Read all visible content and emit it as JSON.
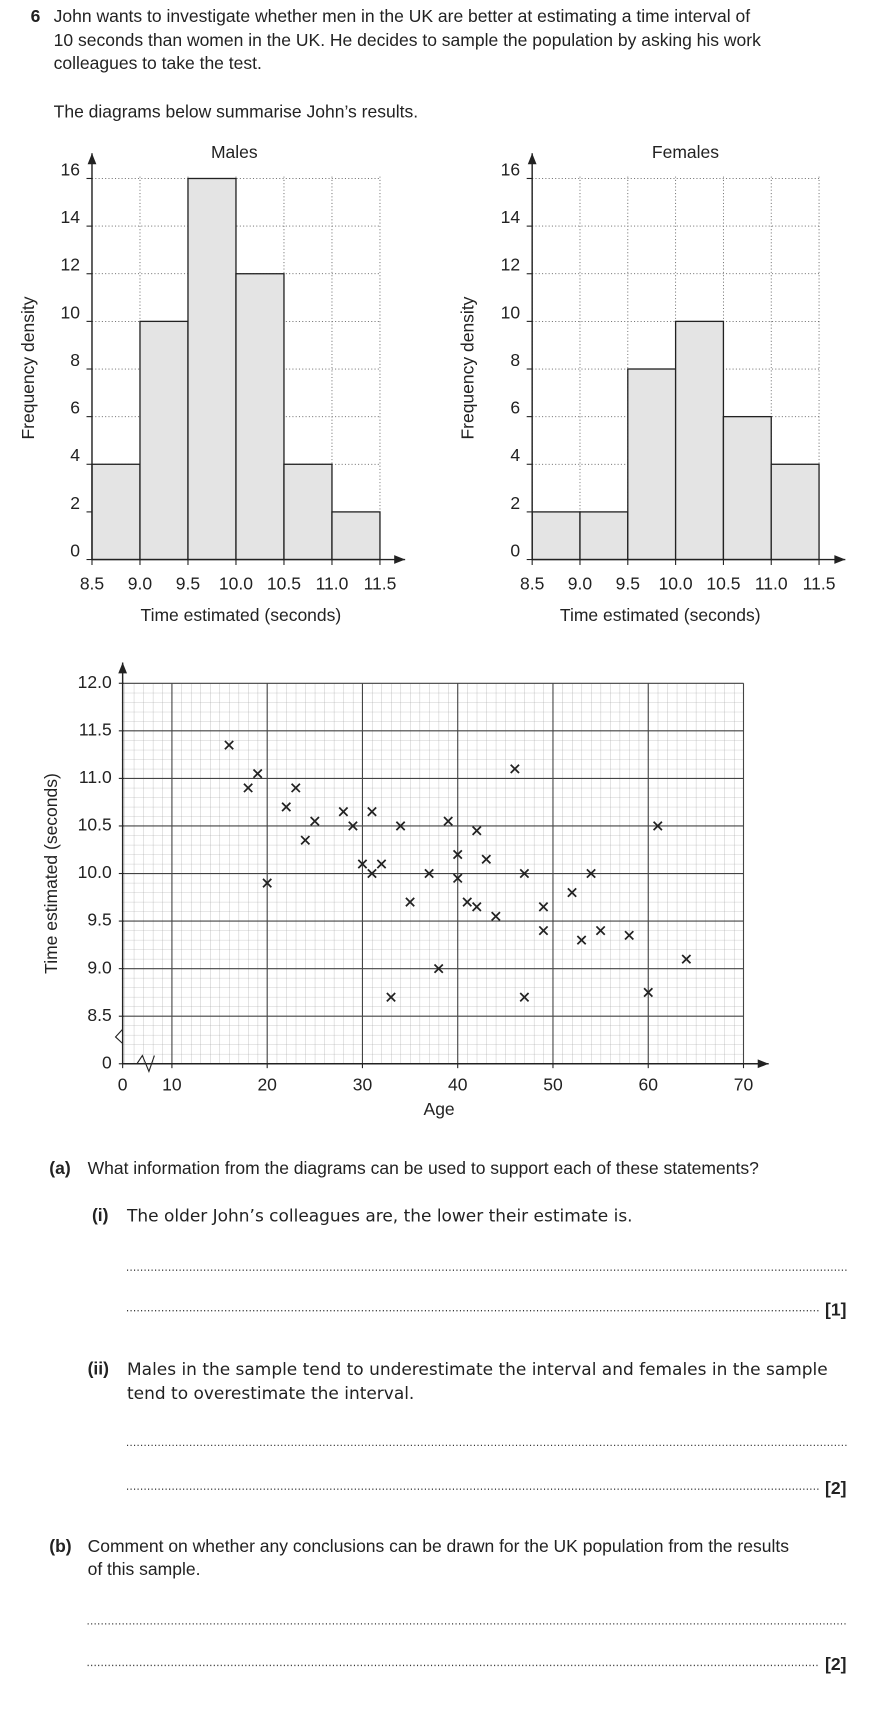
{
  "question_number": "6",
  "intro": [
    "John wants to investigate whether men in the UK are better at estimating a time interval of",
    "10 seconds than women in the UK. He decides to sample the population by asking his work",
    "colleagues to take the test."
  ],
  "lead": "The diagrams below summarise John’s results.",
  "part_a": {
    "label": "(a)",
    "text": "What information from the diagrams can be used to support each of these statements?"
  },
  "part_a_i": {
    "label": "(i)",
    "lines": [
      "The older John’s colleagues are, the lower their estimate is."
    ],
    "marks": "[1]"
  },
  "part_a_ii": {
    "label": "(ii)",
    "lines": [
      "Males in the sample tend to underestimate the interval and females in the sample",
      "tend to overestimate the interval."
    ],
    "marks": "[2]"
  },
  "part_b": {
    "label": "(b)",
    "lines": [
      "Comment on whether any conclusions can be drawn for the UK population from the results",
      "of this sample."
    ],
    "marks": "[2]"
  },
  "chart_data": [
    {
      "type": "histogram",
      "title": "Males",
      "x_label": "Time estimated (seconds)",
      "y_label": "Frequency density",
      "bins": [
        8.5,
        9.0,
        9.5,
        10.0,
        10.5,
        11.0,
        11.5
      ],
      "values": [
        4,
        10,
        16,
        12,
        4,
        2
      ],
      "color": "#e4e4e4",
      "xlim": [
        8.5,
        11.5
      ],
      "ylim": [
        0,
        17
      ],
      "xticks": [
        8.5,
        {
          "value": 9,
          "label": "9.0"
        },
        9.5,
        {
          "value": 10,
          "label": "10.0"
        },
        10.5,
        {
          "value": 11,
          "label": "11.0"
        },
        11.5
      ],
      "yticks": [
        0,
        2,
        4,
        6,
        8,
        10,
        12,
        14,
        16
      ],
      "grid": true
    },
    {
      "type": "histogram",
      "title": "Females",
      "x_label": "Time estimated (seconds)",
      "y_label": "Frequency density",
      "bins": [
        8.5,
        9.0,
        9.5,
        10.0,
        10.5,
        11.0,
        11.5
      ],
      "values": [
        2,
        2,
        8,
        10,
        6,
        4
      ],
      "color": "#e4e4e4",
      "xlim": [
        8.5,
        11.5
      ],
      "ylim": [
        0,
        17
      ],
      "xticks": [
        8.5,
        {
          "value": 9,
          "label": "9.0"
        },
        9.5,
        {
          "value": 10,
          "label": "10.0"
        },
        10.5,
        {
          "value": 11,
          "label": "11.0"
        },
        11.5
      ],
      "yticks": [
        0,
        2,
        4,
        6,
        8,
        10,
        12,
        14,
        16
      ],
      "grid": true
    },
    {
      "type": "scatter",
      "x_label": "Age",
      "y_label": "Time estimated (seconds)",
      "color": "#222222",
      "axis_break": true,
      "x": [
        16,
        18,
        19,
        20,
        22,
        23,
        24,
        25,
        28,
        29,
        30,
        31,
        31,
        32,
        33,
        34,
        35,
        37,
        38,
        39,
        40,
        40,
        41,
        42,
        42,
        43,
        44,
        46,
        47,
        47,
        49,
        49,
        52,
        53,
        54,
        55,
        58,
        60,
        61,
        64
      ],
      "values": [
        11.35,
        10.9,
        11.05,
        9.9,
        10.7,
        10.9,
        10.35,
        10.55,
        10.65,
        10.5,
        10.1,
        10.0,
        10.65,
        10.1,
        8.7,
        10.5,
        9.7,
        10.0,
        9.0,
        10.55,
        10.2,
        9.95,
        9.7,
        9.65,
        10.45,
        10.15,
        9.55,
        11.1,
        10.0,
        8.7,
        9.65,
        9.4,
        9.8,
        9.3,
        10.0,
        9.4,
        9.35,
        8.75,
        10.5,
        9.1
      ],
      "xlim": [
        5,
        70
      ],
      "ylim": [
        8,
        12
      ],
      "xticks": [
        0,
        10,
        20,
        30,
        40,
        50,
        60,
        70
      ],
      "yticks": [
        0,
        8.5,
        {
          "value": 9,
          "label": "9.0"
        },
        9.5,
        {
          "value": 10,
          "label": "10.0"
        },
        10.5,
        {
          "value": 11,
          "label": "11.0"
        },
        11.5,
        {
          "value": 12,
          "label": "12.0"
        }
      ],
      "grid": true
    }
  ]
}
